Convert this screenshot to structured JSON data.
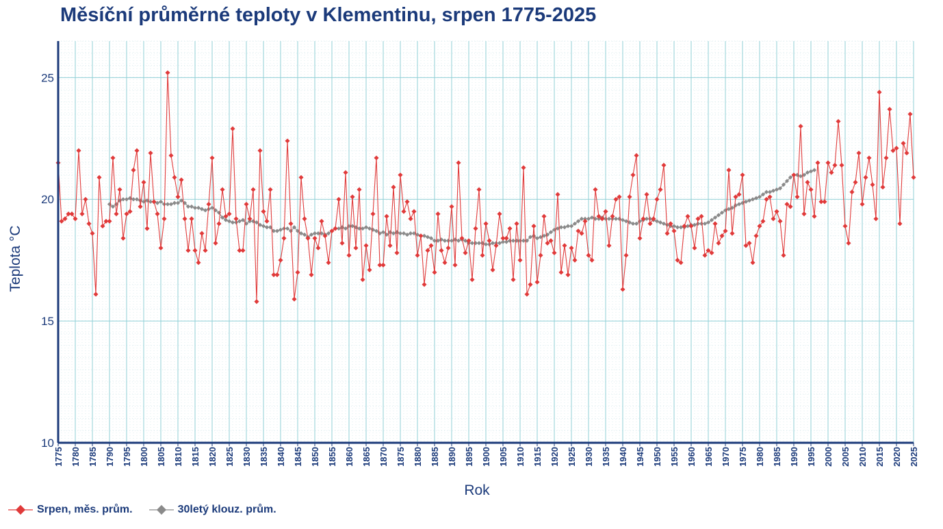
{
  "chart_data": {
    "type": "line",
    "title": "Měsíční průměrné teploty v Klementinu, srpen 1775-2025",
    "xlabel": "Rok",
    "ylabel": "Teplota  °C",
    "xlim": [
      1775,
      2025
    ],
    "ylim": [
      10,
      26.5
    ],
    "yticks": [
      10,
      15,
      20,
      25
    ],
    "xtick_step": 5,
    "colors": {
      "grid": "#8fcfd6",
      "minor_grid": "#dcecef",
      "axis": "#1b3a7a",
      "series1": "#e03a3a",
      "series2": "#8a8a8a"
    },
    "series": [
      {
        "name": "Srpen, měs. prům.",
        "x_start": 1775,
        "values": [
          21.5,
          19.1,
          19.2,
          19.4,
          19.4,
          19.2,
          22.0,
          19.4,
          20.0,
          19.0,
          18.6,
          16.1,
          20.9,
          18.9,
          19.1,
          19.1,
          21.7,
          19.4,
          20.4,
          18.4,
          19.4,
          19.5,
          21.2,
          22.0,
          19.7,
          20.7,
          18.8,
          21.9,
          19.9,
          19.4,
          18.0,
          19.2,
          25.2,
          21.8,
          20.9,
          20.1,
          20.8,
          19.2,
          17.9,
          19.2,
          17.9,
          17.4,
          18.6,
          17.9,
          19.8,
          21.7,
          18.2,
          19.0,
          20.4,
          19.3,
          19.4,
          22.9,
          19.2,
          17.9,
          17.9,
          19.8,
          19.2,
          20.4,
          15.8,
          22.0,
          19.5,
          19.1,
          20.4,
          16.9,
          16.9,
          17.5,
          18.4,
          22.4,
          19.0,
          15.9,
          17.0,
          20.9,
          19.2,
          18.4,
          16.9,
          18.4,
          18.0,
          19.1,
          18.5,
          17.4,
          18.7,
          18.8,
          20.0,
          18.2,
          21.1,
          17.7,
          20.1,
          18.0,
          20.4,
          16.7,
          18.1,
          17.1,
          19.4,
          21.7,
          17.3,
          17.3,
          19.3,
          18.1,
          20.5,
          17.8,
          21.0,
          19.5,
          19.9,
          19.2,
          19.5,
          17.7,
          18.5,
          16.5,
          17.9,
          18.1,
          17.0,
          19.4,
          17.9,
          17.4,
          18.0,
          19.7,
          17.3,
          21.5,
          18.4,
          17.8,
          18.3,
          16.7,
          18.8,
          20.4,
          17.7,
          19.0,
          18.3,
          17.1,
          18.1,
          19.4,
          18.4,
          18.4,
          18.8,
          16.7,
          19.0,
          17.5,
          21.3,
          16.1,
          16.5,
          18.9,
          16.6,
          17.7,
          19.3,
          18.2,
          18.3,
          17.8,
          20.2,
          17.0,
          18.1,
          16.9,
          18.0,
          17.5,
          18.7,
          18.6,
          19.1,
          17.7,
          17.5,
          20.4,
          19.3,
          19.2,
          19.5,
          18.1,
          19.3,
          20.0,
          20.1,
          16.3,
          17.7,
          20.1,
          21.0,
          21.8,
          18.4,
          19.2,
          20.2,
          19.0,
          19.2,
          20.0,
          20.4,
          21.4,
          18.6,
          19.0,
          18.7,
          17.5,
          17.4,
          18.9,
          19.3,
          18.9,
          18.0,
          19.2,
          19.3,
          17.7,
          17.9,
          17.8,
          19.0,
          18.2,
          18.5,
          18.7,
          21.2,
          18.6,
          20.1,
          20.2,
          21.0,
          18.1,
          18.2,
          17.4,
          18.5,
          18.9,
          19.1,
          20.0,
          20.1,
          19.2,
          19.5,
          19.1,
          17.7,
          19.8,
          19.7,
          21.0,
          20.1,
          23.0,
          19.4,
          20.7,
          20.4,
          19.3,
          21.5,
          19.9,
          19.9,
          21.5,
          21.1,
          21.4,
          23.2,
          21.4,
          18.9,
          18.2,
          20.3,
          20.7,
          21.9,
          19.8,
          20.9,
          21.7,
          20.6,
          19.2,
          24.4,
          20.5,
          21.7,
          23.7,
          22.0,
          22.1,
          19.0,
          22.3,
          21.9,
          23.5,
          20.9
        ]
      },
      {
        "name": "30letý klouz. prům.",
        "x_start": 1790,
        "values": [
          19.8,
          19.7,
          19.8,
          19.95,
          20.0,
          20.0,
          20.05,
          20.0,
          20.0,
          19.95,
          19.9,
          19.95,
          19.9,
          19.9,
          19.85,
          19.9,
          19.8,
          19.8,
          19.8,
          19.85,
          19.85,
          19.95,
          19.85,
          19.7,
          19.7,
          19.65,
          19.65,
          19.6,
          19.55,
          19.6,
          19.65,
          19.55,
          19.45,
          19.25,
          19.15,
          19.1,
          19.05,
          19.05,
          19.1,
          19.15,
          19.0,
          19.1,
          19.1,
          19.05,
          18.95,
          18.9,
          18.85,
          18.85,
          18.7,
          18.7,
          18.75,
          18.8,
          18.8,
          18.7,
          18.85,
          18.7,
          18.6,
          18.55,
          18.45,
          18.55,
          18.6,
          18.6,
          18.6,
          18.55,
          18.6,
          18.7,
          18.8,
          18.8,
          18.85,
          18.8,
          18.9,
          18.9,
          18.85,
          18.8,
          18.8,
          18.85,
          18.8,
          18.75,
          18.7,
          18.6,
          18.65,
          18.55,
          18.65,
          18.6,
          18.65,
          18.6,
          18.6,
          18.55,
          18.6,
          18.6,
          18.55,
          18.5,
          18.5,
          18.45,
          18.4,
          18.3,
          18.3,
          18.35,
          18.3,
          18.3,
          18.3,
          18.35,
          18.3,
          18.35,
          18.3,
          18.2,
          18.2,
          18.2,
          18.2,
          18.2,
          18.15,
          18.15,
          18.2,
          18.2,
          18.2,
          18.25,
          18.25,
          18.3,
          18.3,
          18.3,
          18.3,
          18.3,
          18.3,
          18.45,
          18.5,
          18.4,
          18.45,
          18.5,
          18.55,
          18.65,
          18.75,
          18.8,
          18.85,
          18.85,
          18.9,
          18.9,
          19.0,
          19.1,
          19.2,
          19.2,
          19.2,
          19.25,
          19.2,
          19.2,
          19.25,
          19.2,
          19.2,
          19.2,
          19.2,
          19.2,
          19.15,
          19.1,
          19.05,
          19.0,
          19.0,
          19.1,
          19.15,
          19.2,
          19.2,
          19.15,
          19.1,
          19.05,
          19.0,
          18.95,
          18.9,
          18.9,
          18.85,
          18.85,
          18.85,
          18.9,
          18.95,
          18.95,
          19.0,
          19.0,
          19.0,
          19.05,
          19.15,
          19.25,
          19.35,
          19.45,
          19.55,
          19.6,
          19.65,
          19.75,
          19.8,
          19.85,
          19.9,
          19.95,
          20.0,
          20.05,
          20.1,
          20.2,
          20.3,
          20.3,
          20.35,
          20.4,
          20.45,
          20.6,
          20.75,
          20.9,
          21.0,
          21.0,
          20.95,
          21.0,
          21.1,
          21.15,
          21.2
        ]
      }
    ]
  }
}
